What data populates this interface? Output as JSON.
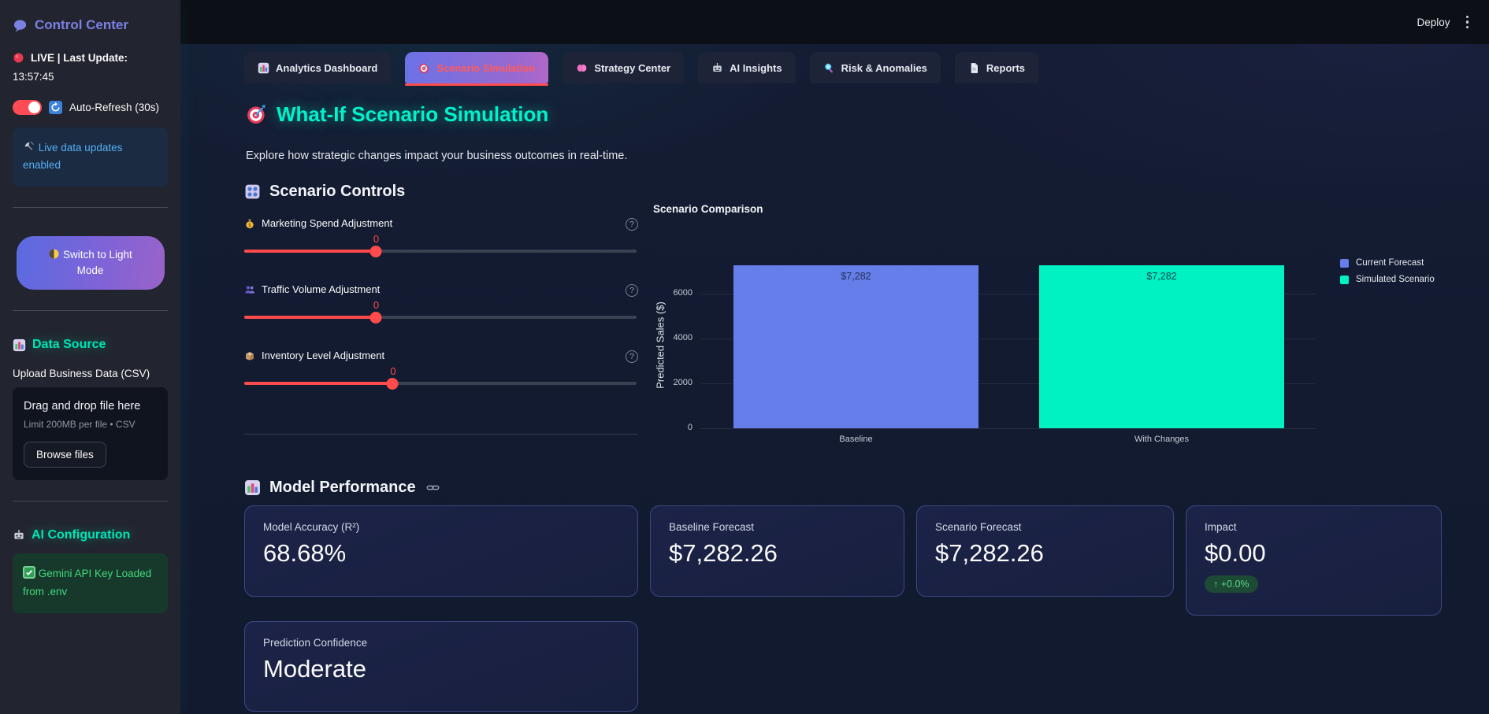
{
  "app": {
    "deploy_label": "Deploy"
  },
  "sidebar": {
    "title": "Control Center",
    "live_label": "LIVE | Last Update:",
    "live_time": "13:57:45",
    "auto_refresh_label": "Auto-Refresh (30s)",
    "auto_refresh_on": true,
    "live_updates_info": "Live data updates enabled",
    "light_mode_button": "Switch to Light Mode",
    "data_source_title": "Data Source",
    "upload_label": "Upload Business Data (CSV)",
    "dropzone_title": "Drag and drop file here",
    "dropzone_hint": "Limit 200MB per file • CSV",
    "browse_button": "Browse files",
    "ai_config_title": "AI Configuration",
    "api_key_status": "Gemini API Key Loaded from .env"
  },
  "tabs": [
    {
      "label": "Analytics Dashboard",
      "icon": "bar-chart",
      "active": false
    },
    {
      "label": "Scenario Simulation",
      "icon": "target",
      "active": true
    },
    {
      "label": "Strategy Center",
      "icon": "brain",
      "active": false
    },
    {
      "label": "AI Insights",
      "icon": "robot",
      "active": false
    },
    {
      "label": "Risk & Anomalies",
      "icon": "magnifier",
      "active": false
    },
    {
      "label": "Reports",
      "icon": "document",
      "active": false
    }
  ],
  "main": {
    "title": "What-If Scenario Simulation",
    "subtitle": "Explore how strategic changes impact your business outcomes in real-time.",
    "controls": {
      "title": "Scenario Controls",
      "sliders": [
        {
          "label": "Marketing Spend Adjustment",
          "icon": "money-bag",
          "value": "0",
          "fill_pct": 33.5
        },
        {
          "label": "Traffic Volume Adjustment",
          "icon": "people",
          "value": "0",
          "fill_pct": 33.5
        },
        {
          "label": "Inventory Level Adjustment",
          "icon": "package",
          "value": "0",
          "fill_pct": 37.8
        }
      ],
      "help_glyph": "?"
    },
    "performance": {
      "title": "Model Performance",
      "metrics": [
        {
          "label": "Model Accuracy (R²)",
          "value": "68.68%"
        },
        {
          "label": "Baseline Forecast",
          "value": "$7,282.26"
        },
        {
          "label": "Scenario Forecast",
          "value": "$7,282.26"
        },
        {
          "label": "Impact",
          "value": "$0.00",
          "delta": "↑ +0.0%"
        },
        {
          "label": "Prediction Confidence",
          "value": "Moderate"
        }
      ]
    }
  },
  "chart_data": {
    "type": "bar",
    "title": "Scenario Comparison",
    "categories": [
      "Baseline",
      "With Changes"
    ],
    "values": [
      7282.26,
      7282.26
    ],
    "bar_labels": [
      "$7,282",
      "$7,282"
    ],
    "bar_colors": [
      "#667eea",
      "#00f2c3"
    ],
    "legend": [
      {
        "name": "Current Forecast",
        "color": "#667eea"
      },
      {
        "name": "Simulated Scenario",
        "color": "#00f2c3"
      }
    ],
    "xlabel": "",
    "ylabel": "Predicted Sales ($)",
    "yticks": [
      0,
      2000,
      4000,
      6000
    ],
    "ylim": [
      0,
      7450
    ],
    "grid": true,
    "legend_position": "right"
  }
}
